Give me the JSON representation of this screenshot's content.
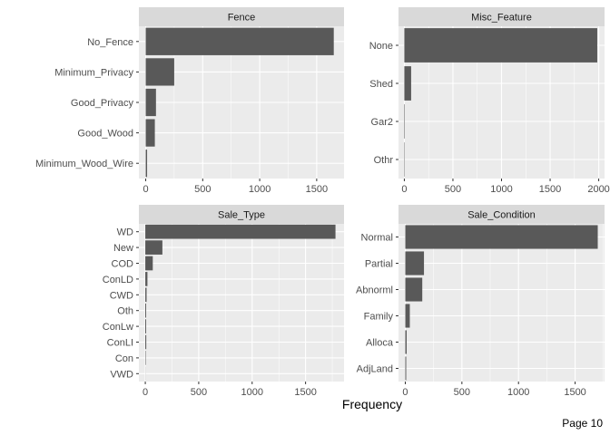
{
  "figure": {
    "xlabel": "Frequency",
    "page_label": "Page 10"
  },
  "colors": {
    "panel_bg": "#ebebeb",
    "grid": "#ffffff",
    "strip_bg": "#d9d9d9",
    "bar": "#595959",
    "tick_text": "#4d4d4d"
  },
  "chart_data": [
    {
      "type": "bar",
      "orientation": "horizontal",
      "title": "Fence",
      "categories": [
        "No_Fence",
        "Minimum_Privacy",
        "Good_Privacy",
        "Good_Wood",
        "Minimum_Wood_Wire"
      ],
      "values": [
        1650,
        250,
        90,
        80,
        12
      ],
      "xlim": [
        -60,
        1740
      ],
      "xticks": [
        0,
        500,
        1000,
        1500
      ],
      "xlabel": "",
      "ylabel": "",
      "grid": true
    },
    {
      "type": "bar",
      "orientation": "horizontal",
      "title": "Misc_Feature",
      "categories": [
        "None",
        "Shed",
        "Gar2",
        "Othr"
      ],
      "values": [
        1985,
        70,
        5,
        4
      ],
      "xlim": [
        -60,
        2060
      ],
      "xticks": [
        0,
        500,
        1000,
        1500,
        2000
      ],
      "xlabel": "",
      "ylabel": "",
      "grid": true
    },
    {
      "type": "bar",
      "orientation": "horizontal",
      "title": "Sale_Type",
      "categories": [
        "WD",
        "New",
        "COD",
        "ConLD",
        "CWD",
        "Oth",
        "ConLw",
        "ConLI",
        "Con",
        "VWD"
      ],
      "values": [
        1780,
        160,
        70,
        20,
        12,
        8,
        8,
        9,
        4,
        1
      ],
      "xlim": [
        -60,
        1860
      ],
      "xticks": [
        0,
        500,
        1000,
        1500
      ],
      "xlabel": "",
      "ylabel": "",
      "grid": true
    },
    {
      "type": "bar",
      "orientation": "horizontal",
      "title": "Sale_Condition",
      "categories": [
        "Normal",
        "Partial",
        "Abnorml",
        "Family",
        "Alloca",
        "AdjLand"
      ],
      "values": [
        1700,
        165,
        150,
        40,
        12,
        8
      ],
      "xlim": [
        -60,
        1760
      ],
      "xticks": [
        0,
        500,
        1000,
        1500
      ],
      "xlabel": "",
      "ylabel": "",
      "grid": true
    }
  ]
}
